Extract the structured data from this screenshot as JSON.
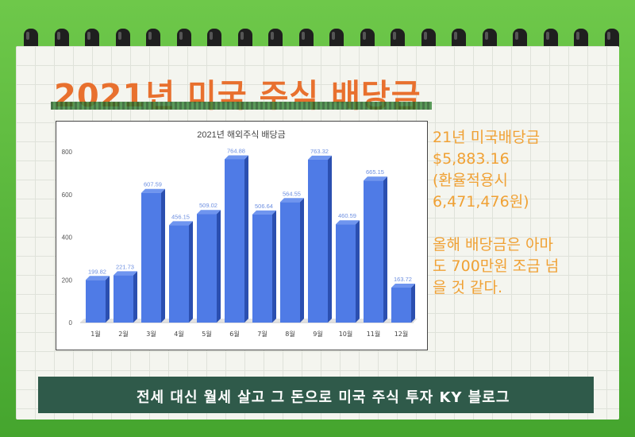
{
  "header": {
    "title": "2021년 미국 주식 배당금"
  },
  "side_note": {
    "lines_1": [
      "21년 미국배당금",
      "$5,883.16",
      "(환율적용시",
      "6,471,476원)"
    ],
    "lines_2": [
      "올해 배당금은 아마",
      "도 700만원 조금 넘",
      "을 것 같다."
    ]
  },
  "footer": {
    "text": "전세 대신 월세 살고 그 돈으로 미국 주식 투자 KY 블로그"
  },
  "colors": {
    "bar_front": "#4f7be6",
    "bar_side": "#2b4fb0",
    "bar_top": "#6f95ef",
    "label": "#6d8fe0",
    "title_orange": "#e8702e",
    "note_orange": "#f0a134"
  },
  "chart_data": {
    "type": "bar",
    "title": "2021년 해외주식 배당금",
    "categories": [
      "1월",
      "2월",
      "3월",
      "4월",
      "5월",
      "6월",
      "7월",
      "8월",
      "9월",
      "10월",
      "11월",
      "12월"
    ],
    "values": [
      199.82,
      221.73,
      607.59,
      456.15,
      509.02,
      764.88,
      506.64,
      564.55,
      763.32,
      460.59,
      665.15,
      163.72
    ],
    "value_labels": [
      "199.82",
      "221.73",
      "607.59",
      "456.15",
      "509.02",
      "764.88",
      "506.64",
      "564.55",
      "763.32",
      "460.59",
      "665.15",
      "163.72"
    ],
    "yticks": [
      "0",
      "200",
      "400",
      "600",
      "800"
    ],
    "ylim": [
      0,
      800
    ],
    "grid": false,
    "legend": "none",
    "style": "3d-bar"
  }
}
